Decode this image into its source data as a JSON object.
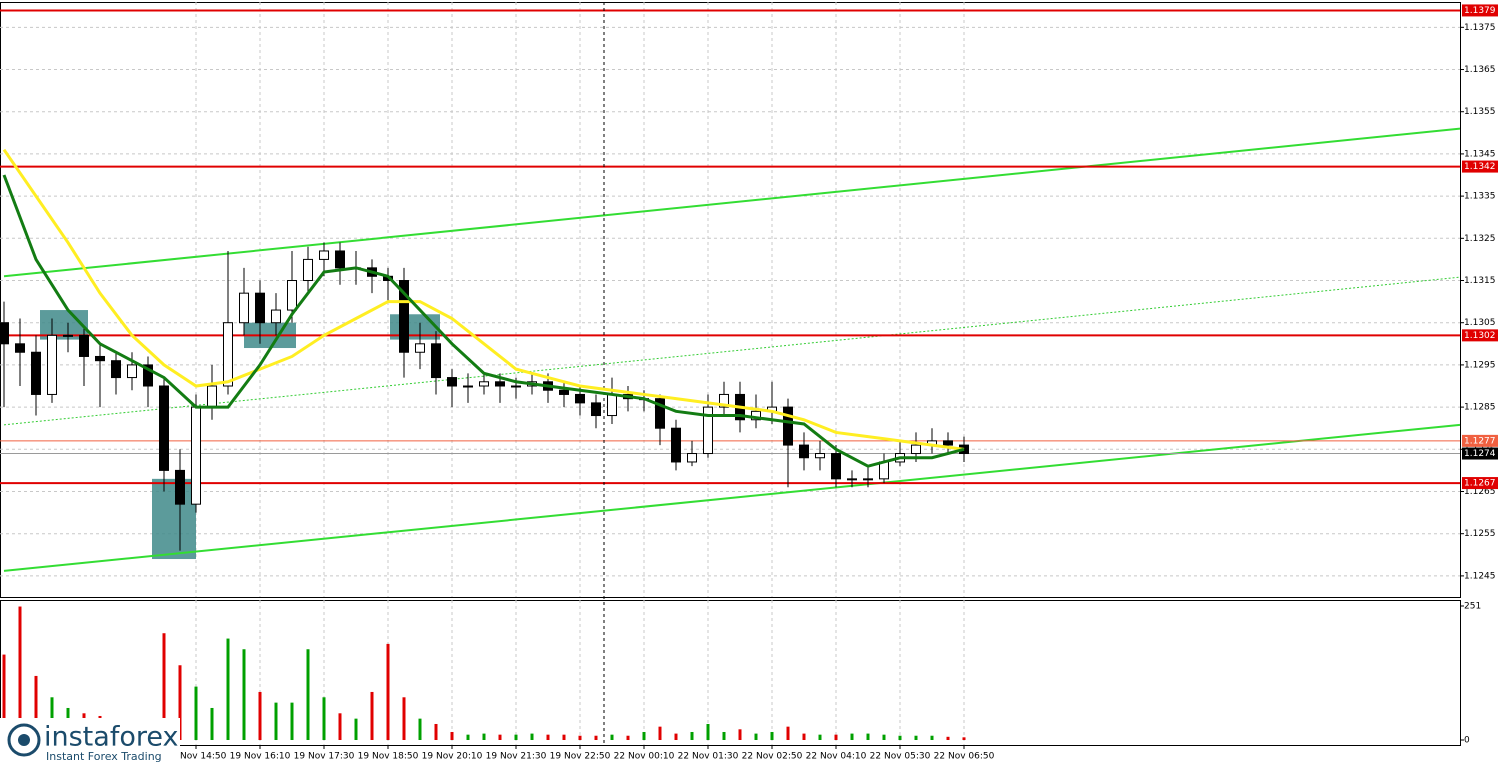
{
  "chart_data": {
    "type": "candlestick",
    "x": [
      0,
      2,
      4,
      6,
      8,
      10,
      12,
      14,
      16,
      18,
      20,
      22,
      24,
      26,
      28,
      30,
      32,
      34,
      36,
      38,
      40,
      42,
      44,
      46,
      48,
      50,
      52,
      54,
      56,
      58,
      60,
      62,
      64,
      66,
      68,
      70,
      72,
      74,
      76,
      78,
      80,
      82,
      84,
      86,
      88,
      90,
      92,
      94,
      96,
      98,
      100,
      102,
      104,
      106,
      108,
      110,
      112,
      114,
      116,
      118,
      120
    ],
    "open": [
      1.1305,
      1.13,
      1.1298,
      1.1288,
      1.1302,
      1.1302,
      1.1297,
      1.1296,
      1.1292,
      1.1295,
      1.129,
      1.127,
      1.1262,
      1.1285,
      1.129,
      1.1305,
      1.1312,
      1.1305,
      1.1308,
      1.1315,
      1.132,
      1.1322,
      1.1318,
      1.1318,
      1.1316,
      1.1315,
      1.1298,
      1.13,
      1.1292,
      1.129,
      1.129,
      1.1291,
      1.129,
      1.129,
      1.1291,
      1.1289,
      1.1288,
      1.1286,
      1.1283,
      1.1288,
      1.1287,
      1.1287,
      1.128,
      1.1272,
      1.1274,
      1.1285,
      1.1288,
      1.1282,
      1.1284,
      1.1285,
      1.1276,
      1.1273,
      1.1274,
      1.1268,
      1.1268,
      1.1268,
      1.1272,
      1.1274,
      1.1276,
      1.1277,
      1.1276
    ],
    "high": [
      1.131,
      1.1306,
      1.1302,
      1.1306,
      1.1305,
      1.1304,
      1.13,
      1.1298,
      1.1298,
      1.1297,
      1.1292,
      1.1275,
      1.1288,
      1.1295,
      1.1322,
      1.1318,
      1.1315,
      1.1312,
      1.1322,
      1.1323,
      1.1324,
      1.1324,
      1.1322,
      1.132,
      1.1318,
      1.1318,
      1.1305,
      1.1303,
      1.1294,
      1.1293,
      1.1293,
      1.1293,
      1.1292,
      1.1293,
      1.1293,
      1.1291,
      1.129,
      1.1288,
      1.1292,
      1.129,
      1.1289,
      1.1288,
      1.1282,
      1.1277,
      1.1288,
      1.1291,
      1.1291,
      1.1288,
      1.1291,
      1.1287,
      1.1279,
      1.1277,
      1.1276,
      1.127,
      1.1271,
      1.1274,
      1.1277,
      1.1279,
      1.128,
      1.1279,
      1.1278
    ],
    "low": [
      1.1285,
      1.129,
      1.1283,
      1.1286,
      1.1298,
      1.129,
      1.1285,
      1.1288,
      1.1289,
      1.1285,
      1.1265,
      1.1251,
      1.126,
      1.1282,
      1.1288,
      1.1302,
      1.13,
      1.1302,
      1.1305,
      1.1312,
      1.1316,
      1.1314,
      1.1314,
      1.1312,
      1.131,
      1.1292,
      1.1294,
      1.1288,
      1.1285,
      1.1286,
      1.1288,
      1.1286,
      1.1287,
      1.1288,
      1.1286,
      1.1285,
      1.1283,
      1.128,
      1.1281,
      1.1284,
      1.1284,
      1.1276,
      1.127,
      1.1271,
      1.1273,
      1.1283,
      1.1279,
      1.128,
      1.1281,
      1.1266,
      1.127,
      1.127,
      1.1266,
      1.1266,
      1.1266,
      1.1267,
      1.1271,
      1.1272,
      1.1274,
      1.1274,
      1.1272
    ],
    "close": [
      1.13,
      1.1298,
      1.1288,
      1.1302,
      1.1302,
      1.1297,
      1.1296,
      1.1292,
      1.1295,
      1.129,
      1.127,
      1.1262,
      1.1285,
      1.129,
      1.1305,
      1.1312,
      1.1305,
      1.1308,
      1.1315,
      1.132,
      1.1322,
      1.1318,
      1.1318,
      1.1316,
      1.1315,
      1.1298,
      1.13,
      1.1292,
      1.129,
      1.129,
      1.1291,
      1.129,
      1.129,
      1.1291,
      1.1289,
      1.1288,
      1.1286,
      1.1283,
      1.1288,
      1.1287,
      1.1287,
      1.128,
      1.1272,
      1.1274,
      1.1285,
      1.1288,
      1.1282,
      1.1284,
      1.1285,
      1.1276,
      1.1273,
      1.1274,
      1.1268,
      1.1268,
      1.1268,
      1.1272,
      1.1274,
      1.1276,
      1.1277,
      1.1276,
      1.1274
    ],
    "volume": [
      160,
      250,
      120,
      80,
      60,
      50,
      45,
      35,
      40,
      35,
      200,
      140,
      100,
      60,
      190,
      170,
      90,
      70,
      70,
      170,
      80,
      50,
      40,
      90,
      180,
      80,
      40,
      30,
      15,
      10,
      12,
      10,
      10,
      12,
      10,
      10,
      8,
      8,
      10,
      8,
      15,
      25,
      12,
      15,
      30,
      15,
      20,
      12,
      15,
      25,
      12,
      10,
      10,
      12,
      12,
      10,
      8,
      8,
      8,
      6,
      5
    ],
    "xlim": [
      -0.5,
      182
    ],
    "xticks": [
      {
        "value": 24,
        "label": "19 Nov 14:50"
      },
      {
        "value": 32,
        "label": "19 Nov 16:10"
      },
      {
        "value": 40,
        "label": "19 Nov 17:30"
      },
      {
        "value": 48,
        "label": "19 Nov 18:50"
      },
      {
        "value": 56,
        "label": "19 Nov 20:10"
      },
      {
        "value": 64,
        "label": "19 Nov 21:30"
      },
      {
        "value": 72,
        "label": "19 Nov 22:50"
      },
      {
        "value": 80,
        "label": "22 Nov 00:10"
      },
      {
        "value": 88,
        "label": "22 Nov 01:30"
      },
      {
        "value": 96,
        "label": "22 Nov 02:50"
      },
      {
        "value": 104,
        "label": "22 Nov 04:10"
      },
      {
        "value": 112,
        "label": "22 Nov 05:30"
      },
      {
        "value": 120,
        "label": "22 Nov 06:50"
      }
    ],
    "ylim": [
      1.124,
      1.1381
    ],
    "yticks": [
      1.1375,
      1.1365,
      1.1355,
      1.1345,
      1.1335,
      1.1325,
      1.1315,
      1.1305,
      1.1295,
      1.1285,
      1.1275,
      1.1265,
      1.1255,
      1.1245
    ],
    "y2lim": [
      0,
      251
    ],
    "y2ticks": [
      0,
      251
    ],
    "grid": true,
    "cursor_x": 75,
    "up_color": "#00a000",
    "down_color": "#e00000",
    "levels": [
      {
        "value": 1.1379,
        "color": "#e00000"
      },
      {
        "value": 1.1342,
        "color": "#e00000"
      },
      {
        "value": 1.1302,
        "color": "#e00000"
      },
      {
        "value": 1.1277,
        "color": "#f06040"
      },
      {
        "value": 1.1274,
        "color": "#9a9a9a"
      },
      {
        "value": 1.1267,
        "color": "#e00000"
      }
    ],
    "trendlines": [
      {
        "x": [
          0,
          182
        ],
        "values": [
          1.1316,
          1.1351
        ],
        "color": "#33dd33",
        "style": "solid"
      },
      {
        "x": [
          0,
          182
        ],
        "values": [
          1.12462,
          1.12808
        ],
        "color": "#33dd33",
        "style": "solid"
      },
      {
        "x": [
          0,
          182
        ],
        "values": [
          1.12808,
          1.13158
        ],
        "color": "#33cc33",
        "style": "dotted"
      }
    ],
    "zones": [
      {
        "x": [
          4.5,
          10.5
        ],
        "values": [
          1.1301,
          1.1308
        ]
      },
      {
        "x": [
          30,
          36.5
        ],
        "values": [
          1.1299,
          1.1305
        ]
      },
      {
        "x": [
          48.25,
          54.5
        ],
        "values": [
          1.1301,
          1.1307
        ]
      },
      {
        "x": [
          18.5,
          24
        ],
        "values": [
          1.1249,
          1.1268
        ]
      }
    ],
    "ma": [
      {
        "color": "#ffee22",
        "x": [
          0,
          4,
          8,
          12,
          16,
          20,
          24,
          28,
          32,
          36,
          40,
          44,
          48,
          52,
          56,
          60,
          64,
          68,
          72,
          76,
          80,
          84,
          88,
          92,
          96,
          100,
          104,
          108,
          112,
          116,
          120
        ],
        "values": [
          1.1346,
          1.1335,
          1.1324,
          1.1312,
          1.1302,
          1.1295,
          1.129,
          1.1291,
          1.1294,
          1.1297,
          1.1302,
          1.1306,
          1.131,
          1.131,
          1.1306,
          1.13,
          1.1294,
          1.1292,
          1.129,
          1.1289,
          1.1288,
          1.1287,
          1.1286,
          1.1285,
          1.1284,
          1.1282,
          1.1279,
          1.1278,
          1.1277,
          1.1276,
          1.1275
        ]
      },
      {
        "color": "#137c13",
        "x": [
          0,
          4,
          8,
          12,
          16,
          20,
          24,
          28,
          32,
          36,
          40,
          44,
          48,
          52,
          56,
          60,
          64,
          68,
          72,
          76,
          80,
          84,
          88,
          92,
          96,
          100,
          104,
          108,
          112,
          116,
          120
        ],
        "values": [
          1.134,
          1.132,
          1.1308,
          1.13,
          1.1296,
          1.1292,
          1.1285,
          1.1285,
          1.1295,
          1.1307,
          1.1317,
          1.1318,
          1.1316,
          1.1308,
          1.13,
          1.1293,
          1.1291,
          1.129,
          1.1289,
          1.1288,
          1.1287,
          1.1284,
          1.1283,
          1.1283,
          1.1282,
          1.1281,
          1.1275,
          1.1271,
          1.1273,
          1.1273,
          1.1275
        ]
      }
    ],
    "branding": {
      "name": "instaforex",
      "tagline": "Instant Forex Trading"
    }
  }
}
